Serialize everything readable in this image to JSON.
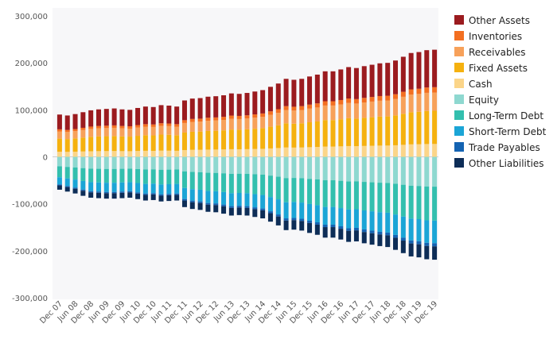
{
  "chart_data": {
    "type": "bar",
    "stacked": true,
    "ylim": [
      -300000,
      300000
    ],
    "yticks": [
      300000,
      200000,
      100000,
      0,
      -100000,
      -200000,
      -300000
    ],
    "ytick_labels": [
      "300,000",
      "200,000",
      "100,000",
      "0",
      "-100,000",
      "-200,000",
      "-300,000"
    ],
    "x_tick_labels": [
      "Dec 07",
      "Jun 08",
      "Dec 08",
      "Jun 09",
      "Dec 09",
      "Jun 10",
      "Dec 10",
      "Jun 11",
      "Dec 11",
      "Jun 12",
      "Dec 12",
      "Jun 13",
      "Dec 13",
      "Jun 14",
      "Dec 14",
      "Jun 15",
      "Dec 15",
      "Jun 16",
      "Dec 16",
      "Jun 17",
      "Dec 17",
      "Jun 18",
      "Dec 18",
      "Jun 19",
      "Dec 19"
    ],
    "x_start": "Dec 07",
    "x_step_months": 3,
    "legend_position": "right",
    "grid": false,
    "totals": {
      "assets": [
        90000,
        88000,
        91000,
        95000,
        99000,
        101000,
        102000,
        103000,
        101000,
        100000,
        104000,
        107000,
        106000,
        110000,
        109000,
        107000,
        120000,
        124000,
        125000,
        128000,
        129000,
        131000,
        135000,
        134000,
        136000,
        139000,
        142000,
        149000,
        156000,
        166000,
        164000,
        166000,
        171000,
        175000,
        182000,
        182000,
        186000,
        191000,
        189000,
        193000,
        196000,
        199000,
        200000,
        205000,
        213000,
        221000,
        223000,
        227000,
        228000
      ],
      "liabilities": [
        -70000,
        -74000,
        -78000,
        -83000,
        -87000,
        -88000,
        -89000,
        -89000,
        -88000,
        -87000,
        -90000,
        -93000,
        -92000,
        -95000,
        -94000,
        -93000,
        -107000,
        -111000,
        -113000,
        -117000,
        -118000,
        -121000,
        -125000,
        -124000,
        -125000,
        -128000,
        -131000,
        -138000,
        -146000,
        -156000,
        -155000,
        -157000,
        -162000,
        -166000,
        -172000,
        -172000,
        -176000,
        -181000,
        -180000,
        -184000,
        -187000,
        -190000,
        -192000,
        -198000,
        -205000,
        -212000,
        -214000,
        -218000,
        -219000
      ]
    },
    "series": [
      {
        "name": "Other Assets",
        "color": "#9b1b1f",
        "side": "assets",
        "share": 0.35
      },
      {
        "name": "Inventories",
        "color": "#f36f21",
        "side": "assets",
        "share": 0.05
      },
      {
        "name": "Receivables",
        "color": "#f7a15a",
        "side": "assets",
        "share": 0.17
      },
      {
        "name": "Fixed Assets",
        "color": "#f5b10f",
        "side": "assets",
        "share": 0.31
      },
      {
        "name": "Cash",
        "color": "#fbd589",
        "side": "assets",
        "share": 0.12
      },
      {
        "name": "Equity",
        "color": "#8ed8d0",
        "side": "liabilities",
        "share": 0.29
      },
      {
        "name": "Long-Term Debt",
        "color": "#33bfae",
        "side": "liabilities",
        "share": 0.33
      },
      {
        "name": "Short-Term Debt",
        "color": "#1ba5d6",
        "side": "liabilities",
        "share": 0.22
      },
      {
        "name": "Trade Payables",
        "color": "#1463b2",
        "side": "liabilities",
        "share": 0.03
      },
      {
        "name": "Other Liabilities",
        "color": "#0d2d57",
        "side": "liabilities",
        "share": 0.13
      }
    ]
  }
}
